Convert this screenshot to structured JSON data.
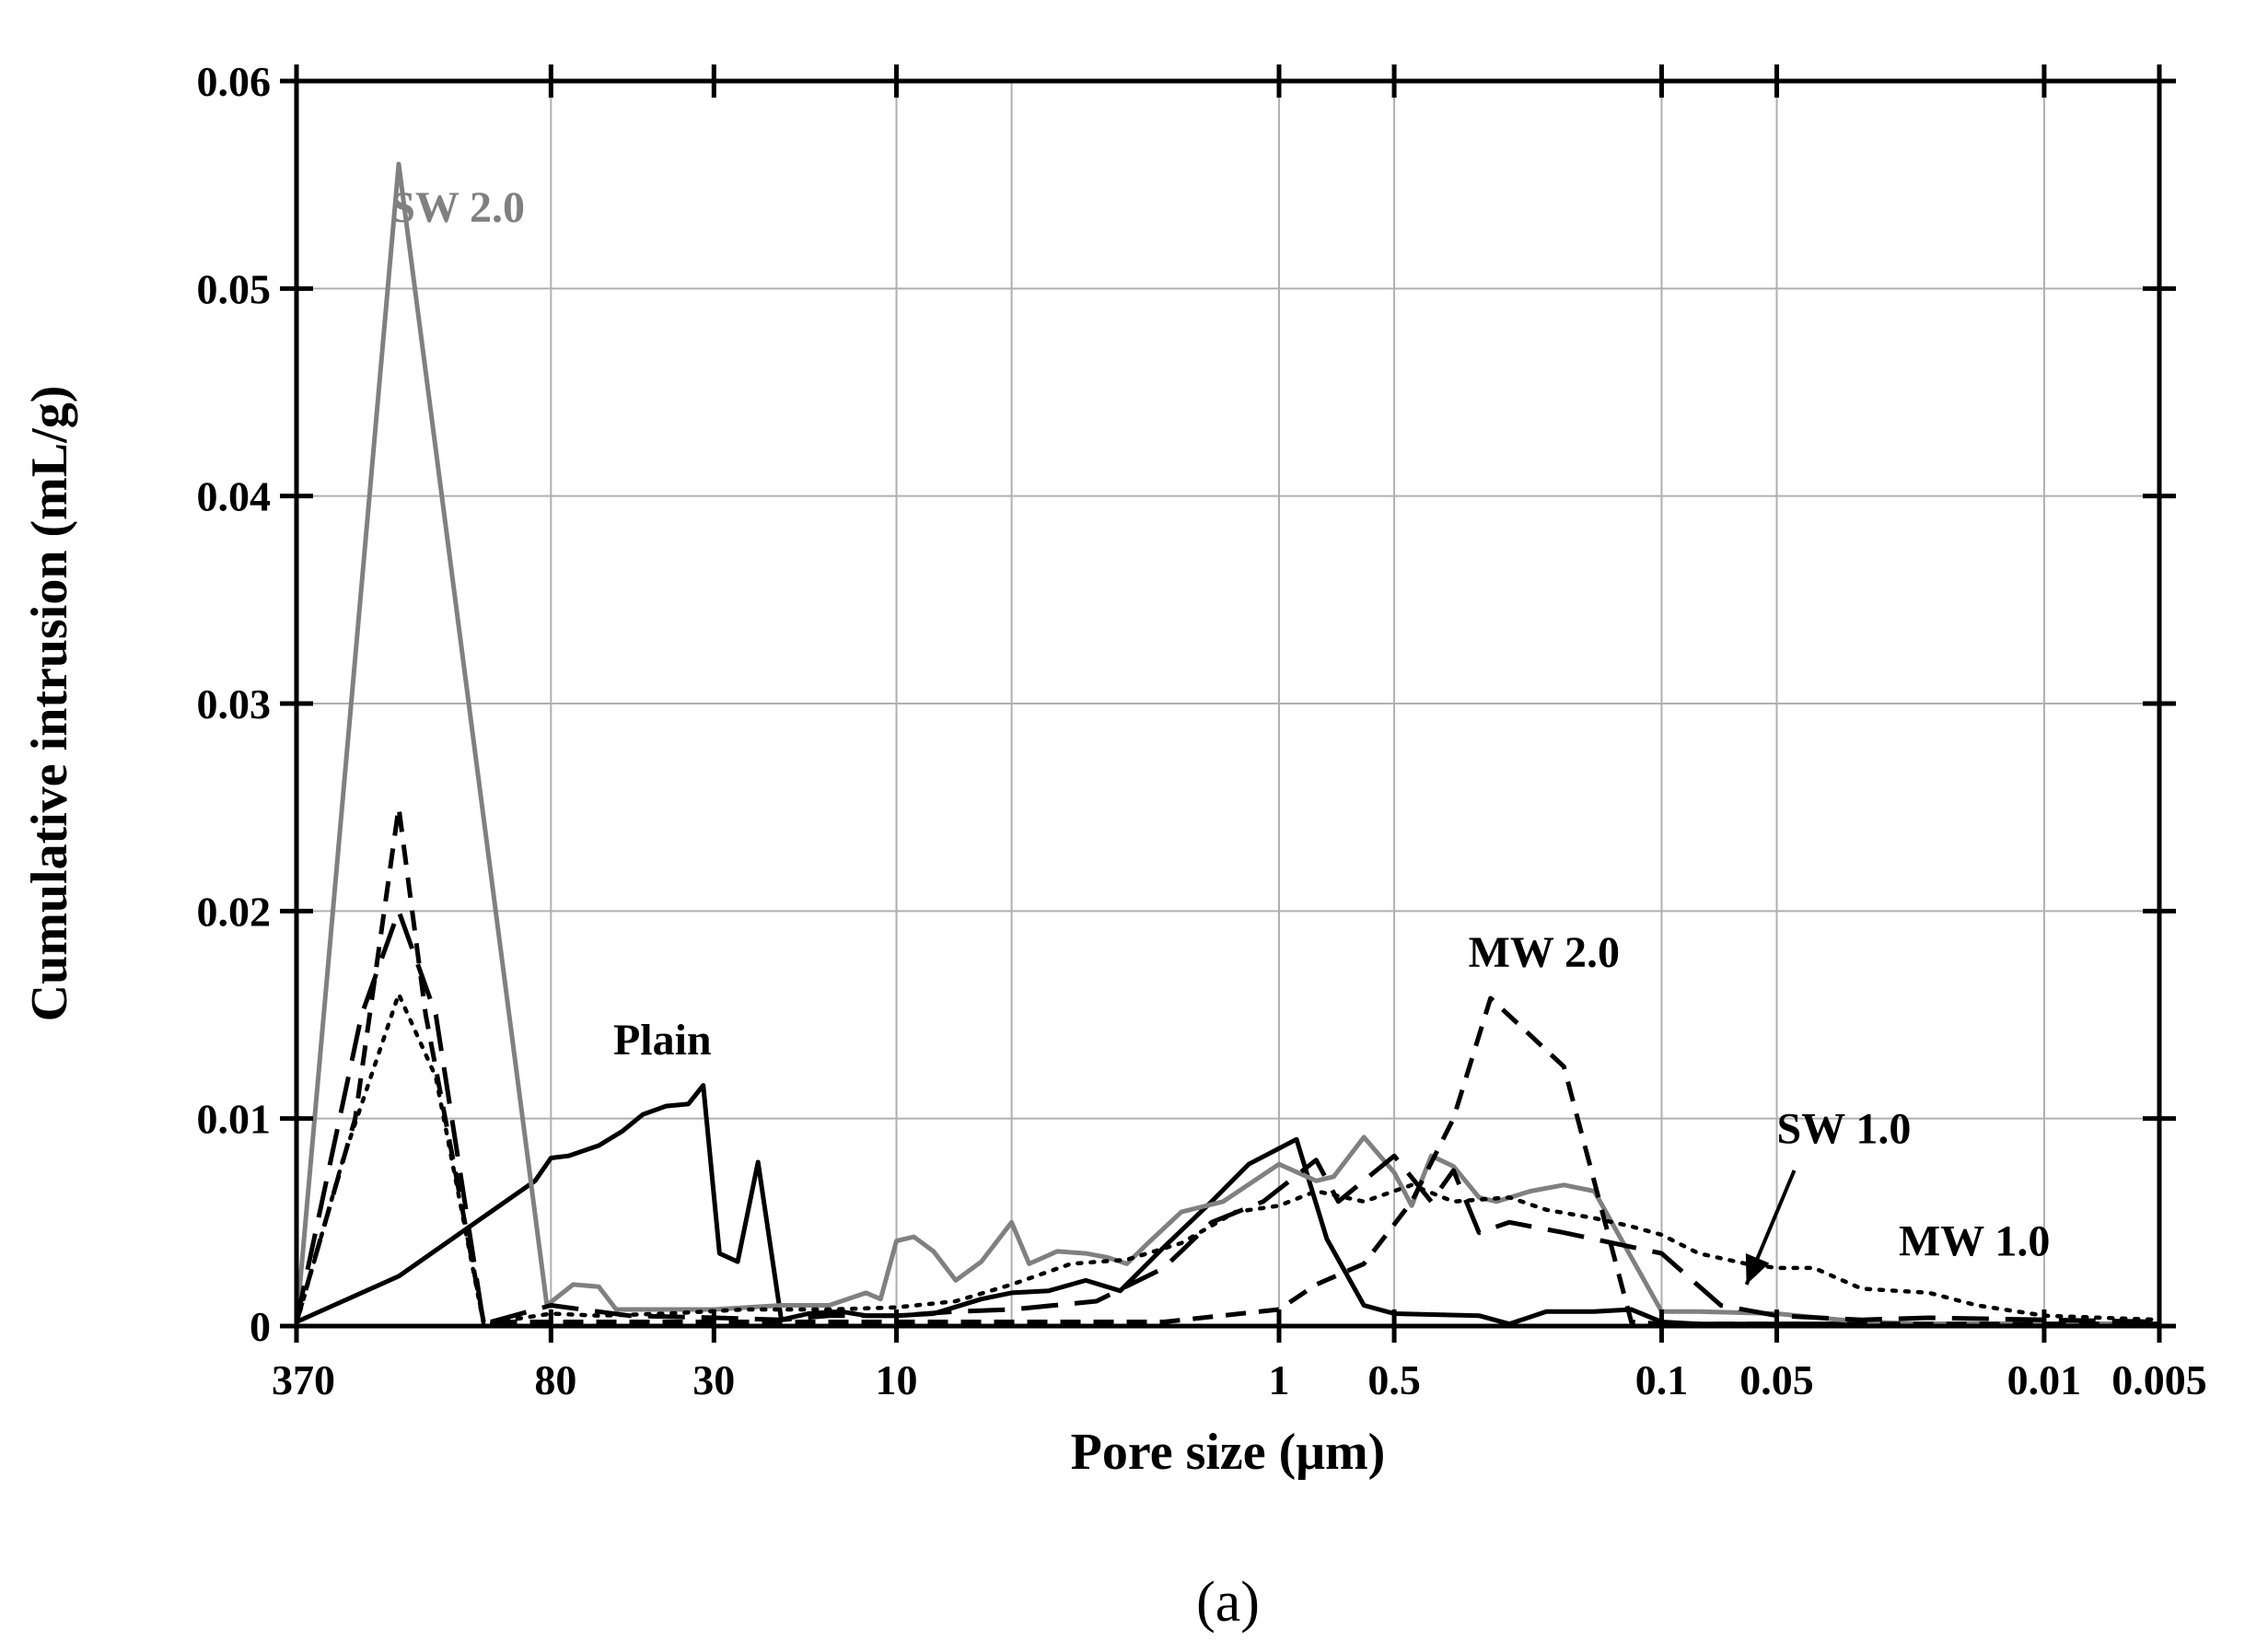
{
  "chart_data": {
    "type": "line",
    "xlabel": "Pore size (μm)",
    "ylabel": "Cumulative intrusion (mL/g)",
    "caption": "(a)",
    "x_scale": "log",
    "x_reversed": true,
    "xlim": [
      370,
      0.005
    ],
    "ylim": [
      0,
      0.06
    ],
    "grid": true,
    "x_ticks": [
      {
        "value": 370,
        "label": "370"
      },
      {
        "value": 80,
        "label": "80"
      },
      {
        "value": 30,
        "label": "30"
      },
      {
        "value": 10,
        "label": "10"
      },
      {
        "value": 1,
        "label": "1"
      },
      {
        "value": 0.5,
        "label": "0.5"
      },
      {
        "value": 0.1,
        "label": "0.1"
      },
      {
        "value": 0.05,
        "label": "0.05"
      },
      {
        "value": 0.01,
        "label": "0.01"
      },
      {
        "value": 0.005,
        "label": "0.005"
      }
    ],
    "x_grid": [
      80,
      10,
      5,
      1,
      0.5,
      0.1,
      0.05,
      0.01
    ],
    "y_ticks": [
      {
        "value": 0,
        "label": "0"
      },
      {
        "value": 0.01,
        "label": "0.01"
      },
      {
        "value": 0.02,
        "label": "0.02"
      },
      {
        "value": 0.03,
        "label": "0.03"
      },
      {
        "value": 0.04,
        "label": "0.04"
      },
      {
        "value": 0.05,
        "label": "0.05"
      },
      {
        "value": 0.06,
        "label": "0.06"
      }
    ],
    "series": [
      {
        "name": "Plain",
        "color": "#000000",
        "dash": "solid",
        "label_at": [
          55,
          0.0131
        ],
        "points": [
          [
            370,
            0.0002
          ],
          [
            200,
            0.0024
          ],
          [
            88,
            0.007
          ],
          [
            80,
            0.0081
          ],
          [
            72,
            0.0082
          ],
          [
            60,
            0.0087
          ],
          [
            52,
            0.0094
          ],
          [
            46,
            0.0102
          ],
          [
            40,
            0.0106
          ],
          [
            35,
            0.0107
          ],
          [
            32,
            0.0116
          ],
          [
            29,
            0.0035
          ],
          [
            26,
            0.0031
          ],
          [
            23,
            0.0079
          ],
          [
            20,
            0.0003
          ],
          [
            17,
            0.0006
          ],
          [
            14,
            0.0007
          ],
          [
            12,
            0.0005
          ],
          [
            10,
            0.0005
          ],
          [
            8,
            0.0006
          ],
          [
            6,
            0.0013
          ],
          [
            5,
            0.0016
          ],
          [
            4,
            0.0017
          ],
          [
            3.2,
            0.0022
          ],
          [
            2.6,
            0.0017
          ],
          [
            2.0,
            0.0038
          ],
          [
            1.5,
            0.006
          ],
          [
            1.2,
            0.0078
          ],
          [
            0.9,
            0.009
          ],
          [
            0.75,
            0.0042
          ],
          [
            0.6,
            0.001
          ],
          [
            0.5,
            0.0006
          ],
          [
            0.3,
            0.0005
          ],
          [
            0.25,
            0.0001
          ],
          [
            0.2,
            0.0007
          ],
          [
            0.15,
            0.0007
          ],
          [
            0.12,
            0.0008
          ],
          [
            0.1,
            0.0002
          ],
          [
            0.08,
            0.0001
          ],
          [
            0.05,
            0.0001
          ],
          [
            0.02,
            0.0001
          ],
          [
            0.005,
            0.0001
          ]
        ]
      },
      {
        "name": "SW 2.0",
        "color": "#808080",
        "dash": "solid",
        "label_at": [
          210,
          0.0532
        ],
        "points": [
          [
            370,
            0.0001
          ],
          [
            200,
            0.056
          ],
          [
            82,
            0.001
          ],
          [
            70,
            0.002
          ],
          [
            60,
            0.0019
          ],
          [
            54,
            0.0008
          ],
          [
            40,
            0.0008
          ],
          [
            30,
            0.0008
          ],
          [
            20,
            0.001
          ],
          [
            15,
            0.001
          ],
          [
            12,
            0.0016
          ],
          [
            11,
            0.0013
          ],
          [
            10,
            0.0041
          ],
          [
            9,
            0.0043
          ],
          [
            8,
            0.0036
          ],
          [
            7,
            0.0022
          ],
          [
            6.0,
            0.0031
          ],
          [
            5.0,
            0.005
          ],
          [
            4.5,
            0.003
          ],
          [
            3.8,
            0.0036
          ],
          [
            3.2,
            0.0035
          ],
          [
            2.8,
            0.0033
          ],
          [
            2.5,
            0.003
          ],
          [
            2.2,
            0.004
          ],
          [
            1.8,
            0.0055
          ],
          [
            1.4,
            0.006
          ],
          [
            1.0,
            0.0078
          ],
          [
            0.8,
            0.007
          ],
          [
            0.72,
            0.0072
          ],
          [
            0.6,
            0.0091
          ],
          [
            0.5,
            0.0074
          ],
          [
            0.45,
            0.0058
          ],
          [
            0.4,
            0.0082
          ],
          [
            0.35,
            0.0077
          ],
          [
            0.3,
            0.0062
          ],
          [
            0.27,
            0.006
          ],
          [
            0.22,
            0.0065
          ],
          [
            0.18,
            0.0068
          ],
          [
            0.15,
            0.0065
          ],
          [
            0.1,
            0.0007
          ],
          [
            0.08,
            0.0007
          ],
          [
            0.05,
            0.0006
          ],
          [
            0.03,
            0.0002
          ],
          [
            0.02,
            0.0001
          ],
          [
            0.01,
            0.0001
          ],
          [
            0.005,
            0.0001
          ]
        ]
      },
      {
        "name": "MW 2.0",
        "color": "#000000",
        "dash": "short-dash",
        "label_at": [
          0.32,
          0.0173
        ],
        "points": [
          [
            370,
            0.0002
          ],
          [
            260,
            0.01
          ],
          [
            200,
            0.025
          ],
          [
            170,
            0.015
          ],
          [
            120,
            0.0002
          ],
          [
            50,
            0.0002
          ],
          [
            20,
            0.0002
          ],
          [
            10,
            0.0002
          ],
          [
            5,
            0.0002
          ],
          [
            2,
            0.0002
          ],
          [
            1,
            0.0008
          ],
          [
            0.8,
            0.002
          ],
          [
            0.6,
            0.003
          ],
          [
            0.45,
            0.006
          ],
          [
            0.35,
            0.01
          ],
          [
            0.28,
            0.0158
          ],
          [
            0.22,
            0.014
          ],
          [
            0.18,
            0.0125
          ],
          [
            0.12,
            0.0002
          ],
          [
            0.1,
            0.0001
          ],
          [
            0.05,
            0.0001
          ],
          [
            0.005,
            0.0001
          ]
        ]
      },
      {
        "name": "SW 1.0",
        "color": "#000000",
        "dash": "long-dash",
        "label_at": [
          0.05,
          0.0088
        ],
        "arrow": {
          "from": [
            0.045,
            0.0075
          ],
          "to": [
            0.06,
            0.002
          ]
        },
        "points": [
          [
            370,
            0.0002
          ],
          [
            250,
            0.015
          ],
          [
            200,
            0.02
          ],
          [
            160,
            0.015
          ],
          [
            120,
            0.0001
          ],
          [
            80,
            0.001
          ],
          [
            50,
            0.0005
          ],
          [
            30,
            0.0004
          ],
          [
            20,
            0.0003
          ],
          [
            15,
            0.0005
          ],
          [
            10,
            0.0005
          ],
          [
            7,
            0.0007
          ],
          [
            5,
            0.0008
          ],
          [
            3,
            0.0012
          ],
          [
            2,
            0.0028
          ],
          [
            1.5,
            0.005
          ],
          [
            1.1,
            0.006
          ],
          [
            0.8,
            0.008
          ],
          [
            0.7,
            0.006
          ],
          [
            0.5,
            0.0082
          ],
          [
            0.4,
            0.006
          ],
          [
            0.35,
            0.0075
          ],
          [
            0.3,
            0.0045
          ],
          [
            0.25,
            0.005
          ],
          [
            0.18,
            0.0045
          ],
          [
            0.1,
            0.0035
          ],
          [
            0.07,
            0.001
          ],
          [
            0.05,
            0.0005
          ],
          [
            0.03,
            0.0003
          ],
          [
            0.02,
            0.0004
          ],
          [
            0.01,
            0.0003
          ],
          [
            0.005,
            0.0002
          ]
        ]
      },
      {
        "name": "MW 1.0",
        "color": "#000000",
        "dash": "dotted",
        "label_at": [
          0.024,
          0.0034
        ],
        "points": [
          [
            370,
            0.0001
          ],
          [
            280,
            0.008
          ],
          [
            200,
            0.016
          ],
          [
            160,
            0.012
          ],
          [
            120,
            0.0001
          ],
          [
            80,
            0.0006
          ],
          [
            60,
            0.0005
          ],
          [
            40,
            0.0006
          ],
          [
            25,
            0.0008
          ],
          [
            15,
            0.0008
          ],
          [
            10,
            0.0009
          ],
          [
            7,
            0.0012
          ],
          [
            5,
            0.002
          ],
          [
            3.5,
            0.003
          ],
          [
            2.5,
            0.0032
          ],
          [
            1.8,
            0.004
          ],
          [
            1.3,
            0.0055
          ],
          [
            1.0,
            0.0058
          ],
          [
            0.8,
            0.0065
          ],
          [
            0.6,
            0.006
          ],
          [
            0.45,
            0.0068
          ],
          [
            0.35,
            0.006
          ],
          [
            0.25,
            0.0062
          ],
          [
            0.2,
            0.0056
          ],
          [
            0.15,
            0.0052
          ],
          [
            0.12,
            0.0048
          ],
          [
            0.1,
            0.0044
          ],
          [
            0.08,
            0.0035
          ],
          [
            0.06,
            0.003
          ],
          [
            0.05,
            0.0028
          ],
          [
            0.04,
            0.0028
          ],
          [
            0.03,
            0.0018
          ],
          [
            0.02,
            0.0016
          ],
          [
            0.015,
            0.001
          ],
          [
            0.01,
            0.0005
          ],
          [
            0.007,
            0.0004
          ],
          [
            0.005,
            0.0003
          ]
        ]
      }
    ]
  }
}
